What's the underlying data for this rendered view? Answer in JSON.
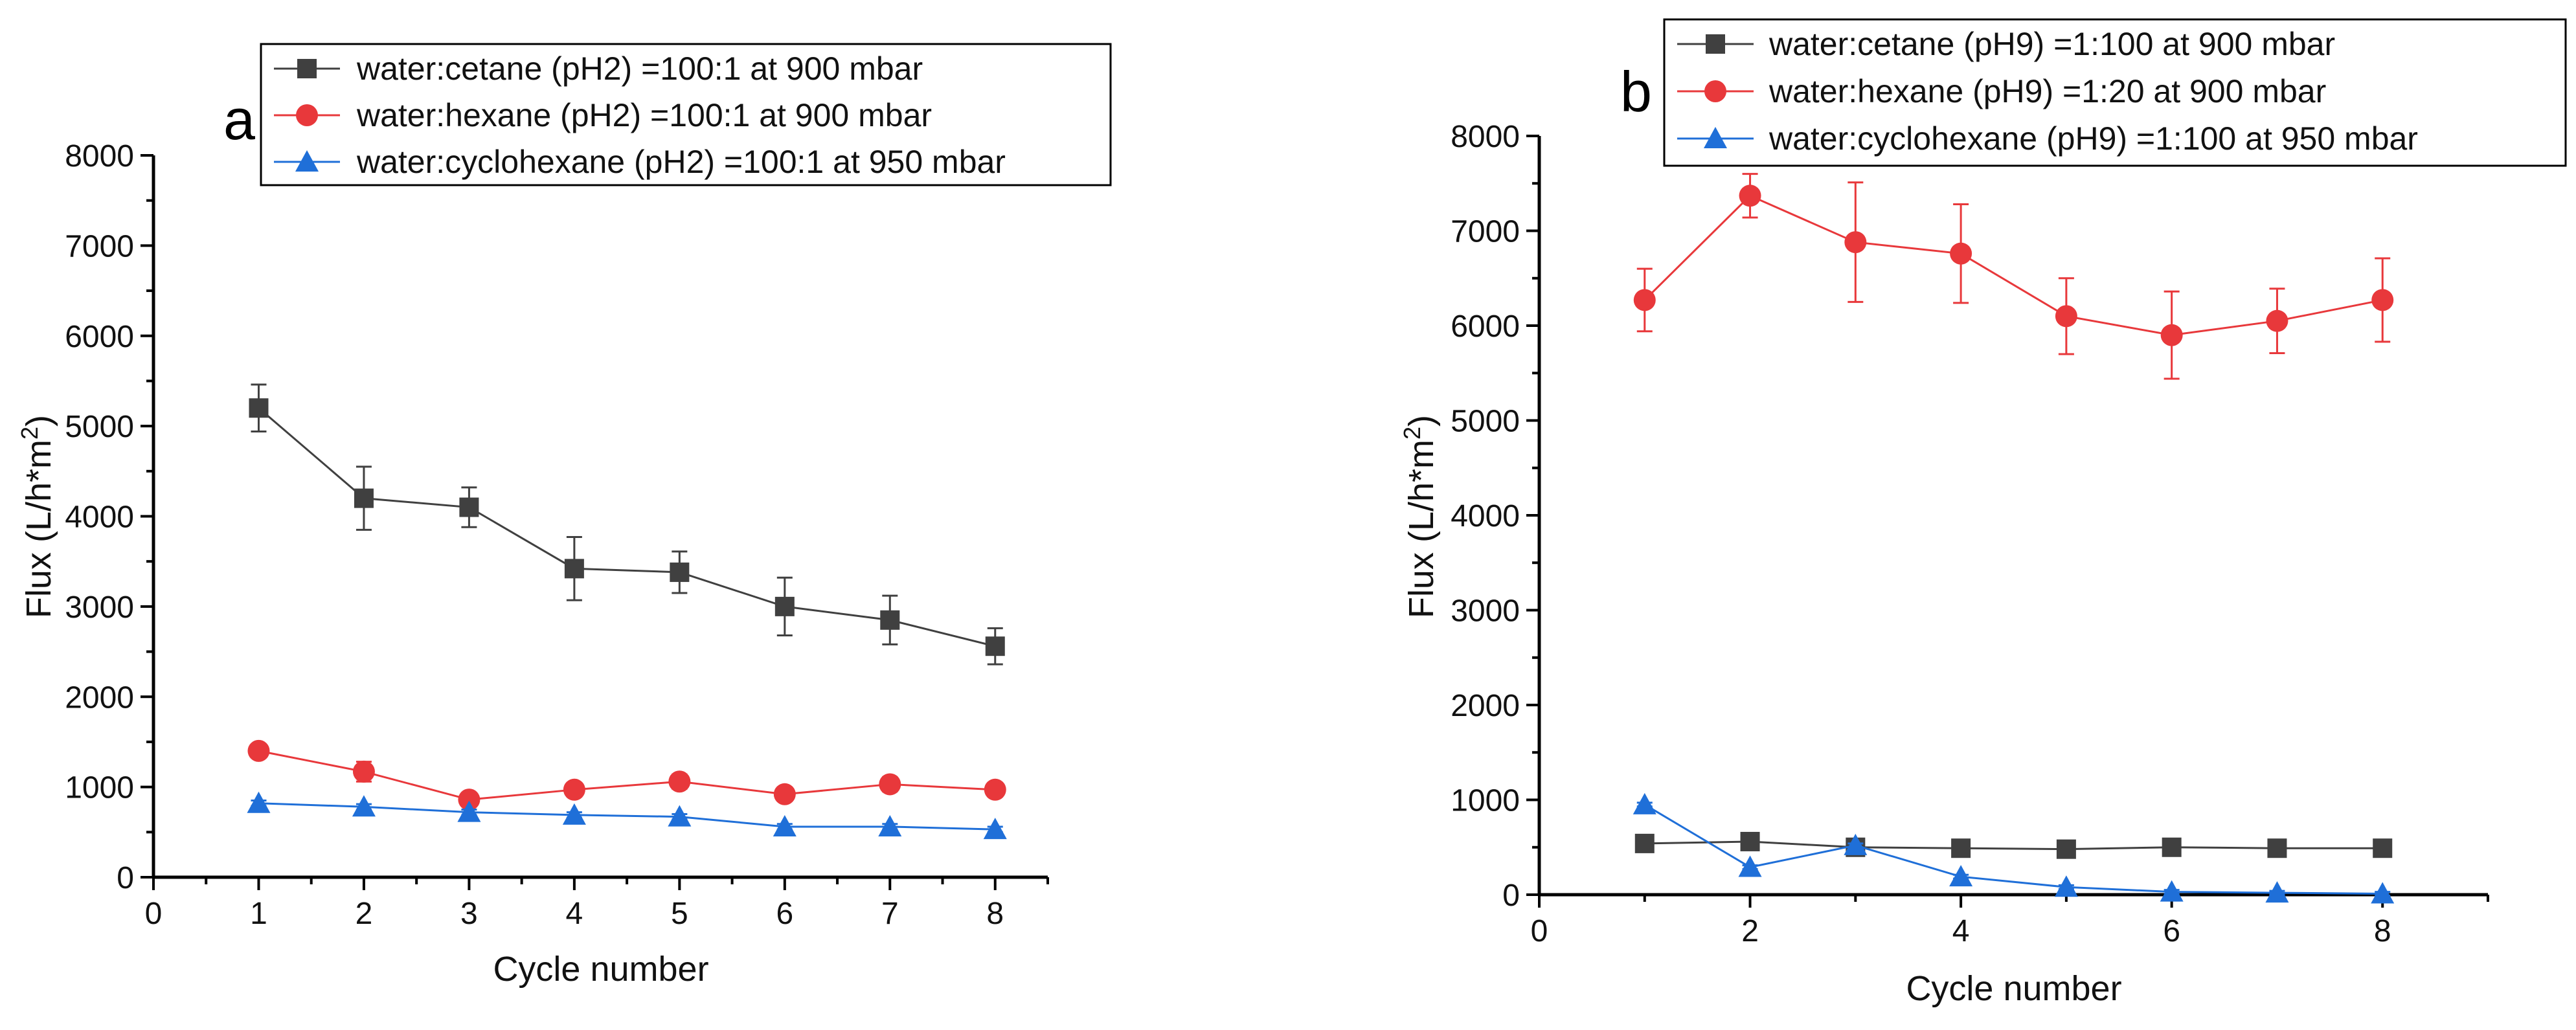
{
  "chart_data": [
    {
      "type": "line",
      "panel_label": "a",
      "xlabel": "Cycle number",
      "ylabel_main": "Flux (L/h*m",
      "ylabel_sup": "2",
      "ylabel_tail": ")",
      "xlim": [
        0,
        8.5
      ],
      "ylim": [
        0,
        8000
      ],
      "xticks": [
        0,
        1,
        2,
        3,
        4,
        5,
        6,
        7,
        8
      ],
      "yticks": [
        0,
        1000,
        2000,
        3000,
        4000,
        5000,
        6000,
        7000,
        8000
      ],
      "legend_position": "top",
      "x": [
        1,
        2,
        3,
        4,
        5,
        6,
        7,
        8
      ],
      "series": [
        {
          "name": "water:cetane (pH2) =100:1 at 900 mbar",
          "color": "#404040",
          "marker": "square",
          "values": [
            5200,
            4200,
            4100,
            3420,
            3380,
            3000,
            2850,
            2560
          ],
          "errors": [
            260,
            350,
            220,
            350,
            230,
            320,
            270,
            200
          ]
        },
        {
          "name": "water:hexane (pH2) =100:1 at 900 mbar",
          "color": "#e8383b",
          "marker": "circle",
          "values": [
            1400,
            1170,
            860,
            970,
            1060,
            920,
            1030,
            970
          ],
          "errors": [
            40,
            110,
            40,
            40,
            80,
            50,
            80,
            40
          ]
        },
        {
          "name": "water:cyclohexane (pH2) =100:1 at 950 mbar",
          "color": "#1f6fd8",
          "marker": "triangle",
          "values": [
            820,
            780,
            720,
            690,
            670,
            560,
            560,
            530
          ],
          "errors": [
            30,
            30,
            30,
            30,
            30,
            30,
            30,
            30
          ]
        }
      ]
    },
    {
      "type": "line",
      "panel_label": "b",
      "xlabel": "Cycle number",
      "ylabel_main": "Flux (L/h*m",
      "ylabel_sup": "2",
      "ylabel_tail": ")",
      "xlim": [
        0,
        9
      ],
      "ylim": [
        0,
        8000
      ],
      "xticks": [
        0,
        2,
        4,
        6,
        8
      ],
      "yticks": [
        0,
        1000,
        2000,
        3000,
        4000,
        5000,
        6000,
        7000,
        8000
      ],
      "legend_position": "top",
      "x": [
        1,
        2,
        3,
        4,
        5,
        6,
        7,
        8
      ],
      "series": [
        {
          "name": "water:cetane (pH9) =1:100 at 900 mbar",
          "color": "#404040",
          "marker": "square",
          "values": [
            540,
            560,
            500,
            490,
            480,
            500,
            490,
            490
          ],
          "errors": [
            20,
            20,
            20,
            20,
            20,
            20,
            20,
            20
          ]
        },
        {
          "name": "water:hexane (pH9) =1:20 at 900 mbar",
          "color": "#e8383b",
          "marker": "circle",
          "values": [
            6270,
            7370,
            6880,
            6760,
            6100,
            5900,
            6050,
            6270
          ],
          "errors": [
            330,
            230,
            630,
            520,
            400,
            460,
            340,
            440
          ]
        },
        {
          "name": "water:cyclohexane (pH9) =1:100 at 950 mbar",
          "color": "#1f6fd8",
          "marker": "triangle",
          "values": [
            950,
            290,
            520,
            190,
            80,
            30,
            20,
            10
          ],
          "errors": [
            20,
            20,
            20,
            20,
            20,
            20,
            20,
            20
          ]
        }
      ]
    }
  ]
}
